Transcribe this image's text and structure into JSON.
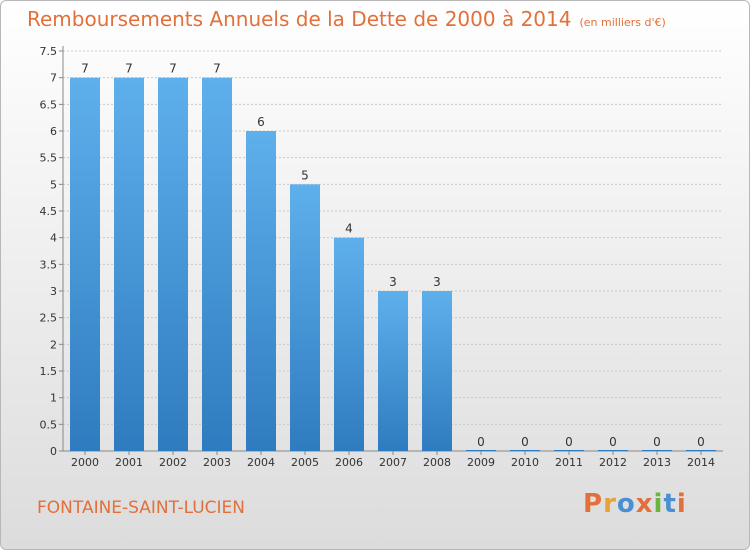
{
  "header": {
    "title": "Remboursements Annuels de la Dette de 2000 à 2014",
    "unit": "(en milliers d'€)"
  },
  "footer": {
    "commune": "FONTAINE-SAINT-LUCIEN",
    "brand": [
      "P",
      "r",
      "o",
      "x",
      "i",
      "t",
      "i"
    ],
    "brand_colors": [
      "#e2703a",
      "#e8a23a",
      "#4a8fd4",
      "#e2703a",
      "#6cb33f",
      "#4a8fd4",
      "#e2703a"
    ]
  },
  "colors": {
    "bar_top": "#5eb0ec",
    "bar_bottom": "#2f7bbf",
    "grid": "#c8c8c8",
    "axis_text": "#333333",
    "title": "#e2703a"
  },
  "chart_data": {
    "type": "bar",
    "title": "Remboursements Annuels de la Dette de 2000 à 2014",
    "subtitle": "(en milliers d'€)",
    "xlabel": "",
    "ylabel": "",
    "categories": [
      "2000",
      "2001",
      "2002",
      "2003",
      "2004",
      "2005",
      "2006",
      "2007",
      "2008",
      "2009",
      "2010",
      "2011",
      "2012",
      "2013",
      "2014"
    ],
    "values": [
      7,
      7,
      7,
      7,
      6,
      5,
      4,
      3,
      3,
      0,
      0,
      0,
      0,
      0,
      0
    ],
    "data_labels": [
      "7",
      "7",
      "7",
      "7",
      "6",
      "5",
      "4",
      "3",
      "3",
      "0",
      "0",
      "0",
      "0",
      "0",
      "0"
    ],
    "ylim": [
      0,
      7.5
    ],
    "yticks": [
      "0",
      "0.5",
      "1",
      "1.5",
      "2",
      "2.5",
      "3",
      "3.5",
      "4",
      "4.5",
      "5",
      "5.5",
      "6",
      "6.5",
      "7",
      "7.5"
    ],
    "grid": true,
    "legend": "none"
  }
}
